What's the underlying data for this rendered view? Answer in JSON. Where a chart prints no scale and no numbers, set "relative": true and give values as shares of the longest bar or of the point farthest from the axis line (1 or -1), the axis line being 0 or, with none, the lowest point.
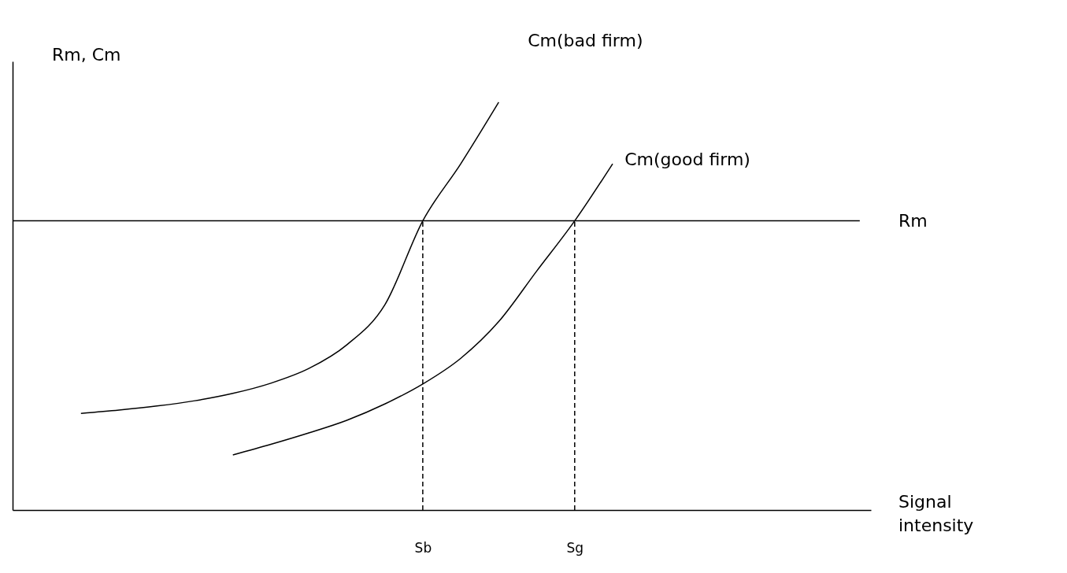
{
  "chart_data": {
    "type": "line",
    "relative": true,
    "ylabel": "Rm, Cm",
    "xlabel": "Signal intensity",
    "categories": [
      null,
      null,
      null,
      null,
      null,
      null,
      null,
      null,
      null,
      null,
      "Sb",
      null,
      null,
      null,
      "Sg",
      null,
      null,
      null,
      null,
      null,
      null,
      null
    ],
    "series": [
      {
        "name": "Cm(bad firm)",
        "color": "#000000",
        "values": [
          null,
          0.237,
          0.245,
          0.255,
          0.268,
          0.286,
          0.311,
          0.347,
          0.405,
          0.503,
          0.709,
          0.849,
          1.0,
          null,
          null,
          null,
          null,
          null,
          null,
          null,
          null,
          null
        ]
      },
      {
        "name": "Cm(good firm)",
        "color": "#000000",
        "values": [
          null,
          null,
          null,
          null,
          null,
          0.135,
          0.161,
          0.189,
          0.22,
          0.26,
          0.309,
          0.372,
          0.462,
          0.586,
          0.709,
          0.849,
          null,
          null,
          null,
          null,
          null,
          null
        ]
      }
    ],
    "ref_lines": [
      {
        "axis": "y",
        "value": 0.709,
        "label": "Rm",
        "color": "#000000",
        "line_style": "solid"
      },
      {
        "axis": "x",
        "value": "Sb",
        "label": null,
        "color": "#000000",
        "line_style": "dashed"
      },
      {
        "axis": "x",
        "value": "Sg",
        "label": null,
        "color": "#000000",
        "line_style": "dashed"
      }
    ],
    "grid": false,
    "marker": "none",
    "line_style": "solid"
  }
}
